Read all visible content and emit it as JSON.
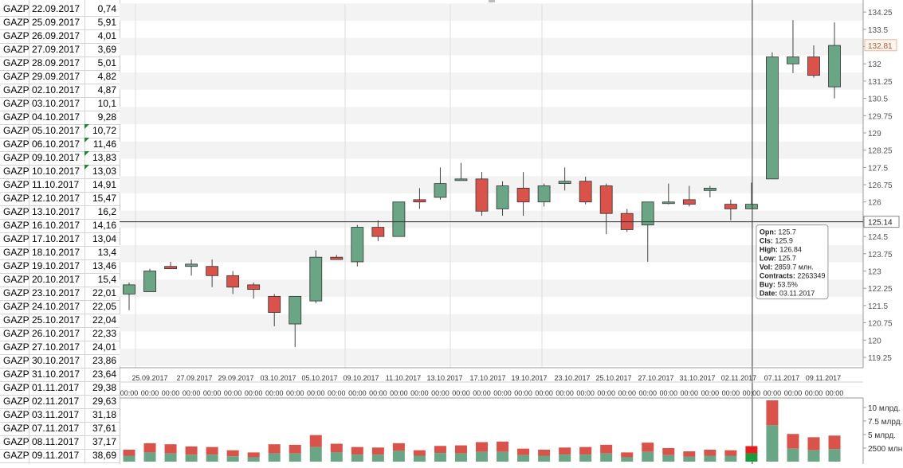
{
  "sheet": {
    "rows": [
      {
        "ticker": "GAZP",
        "date": "22.09.2017",
        "value": "0,74",
        "flag": false
      },
      {
        "ticker": "GAZP",
        "date": "25.09.2017",
        "value": "5,91",
        "flag": false
      },
      {
        "ticker": "GAZP",
        "date": "26.09.2017",
        "value": "4,01",
        "flag": false
      },
      {
        "ticker": "GAZP",
        "date": "27.09.2017",
        "value": "3,69",
        "flag": false
      },
      {
        "ticker": "GAZP",
        "date": "28.09.2017",
        "value": "5,01",
        "flag": false
      },
      {
        "ticker": "GAZP",
        "date": "29.09.2017",
        "value": "4,82",
        "flag": false
      },
      {
        "ticker": "GAZP",
        "date": "02.10.2017",
        "value": "4,87",
        "flag": false
      },
      {
        "ticker": "GAZP",
        "date": "03.10.2017",
        "value": "10,1",
        "flag": false
      },
      {
        "ticker": "GAZP",
        "date": "04.10.2017",
        "value": "9,28",
        "flag": false
      },
      {
        "ticker": "GAZP",
        "date": "05.10.2017",
        "value": "10,72",
        "flag": true
      },
      {
        "ticker": "GAZP",
        "date": "06.10.2017",
        "value": "11,46",
        "flag": true
      },
      {
        "ticker": "GAZP",
        "date": "09.10.2017",
        "value": "13,83",
        "flag": true
      },
      {
        "ticker": "GAZP",
        "date": "10.10.2017",
        "value": "13,03",
        "flag": true
      },
      {
        "ticker": "GAZP",
        "date": "11.10.2017",
        "value": "14,91",
        "flag": false
      },
      {
        "ticker": "GAZP",
        "date": "12.10.2017",
        "value": "15,47",
        "flag": false
      },
      {
        "ticker": "GAZP",
        "date": "13.10.2017",
        "value": "16,2",
        "flag": false
      },
      {
        "ticker": "GAZP",
        "date": "16.10.2017",
        "value": "14,16",
        "flag": false
      },
      {
        "ticker": "GAZP",
        "date": "17.10.2017",
        "value": "13,04",
        "flag": false
      },
      {
        "ticker": "GAZP",
        "date": "18.10.2017",
        "value": "13,4",
        "flag": false
      },
      {
        "ticker": "GAZP",
        "date": "19.10.2017",
        "value": "13,46",
        "flag": false
      },
      {
        "ticker": "GAZP",
        "date": "20.10.2017",
        "value": "15,4",
        "flag": false
      },
      {
        "ticker": "GAZP",
        "date": "23.10.2017",
        "value": "22,01",
        "flag": false
      },
      {
        "ticker": "GAZP",
        "date": "24.10.2017",
        "value": "22,05",
        "flag": false
      },
      {
        "ticker": "GAZP",
        "date": "25.10.2017",
        "value": "22,04",
        "flag": false
      },
      {
        "ticker": "GAZP",
        "date": "26.10.2017",
        "value": "22,33",
        "flag": false
      },
      {
        "ticker": "GAZP",
        "date": "27.10.2017",
        "value": "24,01",
        "flag": false
      },
      {
        "ticker": "GAZP",
        "date": "30.10.2017",
        "value": "23,86",
        "flag": false
      },
      {
        "ticker": "GAZP",
        "date": "31.10.2017",
        "value": "23,64",
        "flag": false
      },
      {
        "ticker": "GAZP",
        "date": "01.11.2017",
        "value": "29,38",
        "flag": false
      },
      {
        "ticker": "GAZP",
        "date": "02.11.2017",
        "value": "29,63",
        "flag": false
      },
      {
        "ticker": "GAZP",
        "date": "03.11.2017",
        "value": "31,18",
        "flag": false
      },
      {
        "ticker": "GAZP",
        "date": "07.11.2017",
        "value": "37,61",
        "flag": false
      },
      {
        "ticker": "GAZP",
        "date": "08.11.2017",
        "value": "37,17",
        "flag": false
      },
      {
        "ticker": "GAZP",
        "date": "09.11.2017",
        "value": "38,69",
        "flag": false
      }
    ]
  },
  "chart_data": {
    "type": "candlestick",
    "ylim": [
      118.8,
      134.6
    ],
    "y_ticks": [
      119.25,
      120,
      120.75,
      121.5,
      122.25,
      123,
      123.75,
      124.5,
      125.25,
      126,
      126.75,
      127.5,
      128.25,
      129,
      129.75,
      130.5,
      131.25,
      132,
      132.75,
      133.5,
      134.25
    ],
    "y_tick_labels": [
      "119.25",
      "120",
      "120.75",
      "121.5",
      "122.25",
      "123",
      "123.75",
      "124.5",
      "",
      "126",
      "126.75",
      "127.5",
      "128.25",
      "129",
      "129.75",
      "130.5",
      "131.25",
      "132",
      "",
      "133.5",
      "134.25"
    ],
    "candles": [
      {
        "o": 122.0,
        "h": 122.5,
        "l": 121.3,
        "c": 122.4
      },
      {
        "o": 122.1,
        "h": 123.1,
        "l": 122.1,
        "c": 123.0
      },
      {
        "o": 123.2,
        "h": 123.4,
        "l": 123.1,
        "c": 123.1
      },
      {
        "o": 123.2,
        "h": 123.5,
        "l": 122.8,
        "c": 123.3
      },
      {
        "o": 123.2,
        "h": 123.5,
        "l": 122.3,
        "c": 122.8
      },
      {
        "o": 122.8,
        "h": 123.0,
        "l": 122.0,
        "c": 122.3
      },
      {
        "o": 122.4,
        "h": 122.5,
        "l": 121.8,
        "c": 122.2
      },
      {
        "o": 121.9,
        "h": 122.0,
        "l": 120.6,
        "c": 121.2
      },
      {
        "o": 120.7,
        "h": 121.8,
        "l": 119.7,
        "c": 121.9
      },
      {
        "o": 121.7,
        "h": 123.9,
        "l": 121.6,
        "c": 123.6
      },
      {
        "o": 123.6,
        "h": 123.7,
        "l": 123.5,
        "c": 123.5
      },
      {
        "o": 123.4,
        "h": 125.0,
        "l": 123.2,
        "c": 124.9
      },
      {
        "o": 124.9,
        "h": 125.2,
        "l": 124.3,
        "c": 124.5
      },
      {
        "o": 124.5,
        "h": 126.0,
        "l": 124.5,
        "c": 126.0
      },
      {
        "o": 126.1,
        "h": 126.6,
        "l": 125.7,
        "c": 126.0
      },
      {
        "o": 126.2,
        "h": 127.5,
        "l": 126.1,
        "c": 126.8
      },
      {
        "o": 127.0,
        "h": 127.7,
        "l": 127.0,
        "c": 127.0
      },
      {
        "o": 127.0,
        "h": 127.3,
        "l": 125.4,
        "c": 125.6
      },
      {
        "o": 125.7,
        "h": 126.9,
        "l": 125.4,
        "c": 126.7
      },
      {
        "o": 126.6,
        "h": 127.3,
        "l": 125.4,
        "c": 126.0
      },
      {
        "o": 126.0,
        "h": 126.8,
        "l": 125.8,
        "c": 126.7
      },
      {
        "o": 126.8,
        "h": 127.5,
        "l": 126.5,
        "c": 126.9
      },
      {
        "o": 126.9,
        "h": 127.1,
        "l": 125.9,
        "c": 126.0
      },
      {
        "o": 126.7,
        "h": 126.8,
        "l": 124.6,
        "c": 125.5
      },
      {
        "o": 125.5,
        "h": 125.7,
        "l": 124.7,
        "c": 124.8
      },
      {
        "o": 125.0,
        "h": 126.0,
        "l": 123.4,
        "c": 126.0
      },
      {
        "o": 126.0,
        "h": 126.8,
        "l": 125.9,
        "c": 126.0
      },
      {
        "o": 126.1,
        "h": 126.7,
        "l": 125.8,
        "c": 125.9
      },
      {
        "o": 126.5,
        "h": 126.7,
        "l": 126.2,
        "c": 126.6
      },
      {
        "o": 125.9,
        "h": 126.1,
        "l": 125.2,
        "c": 125.7
      },
      {
        "o": 125.7,
        "h": 126.84,
        "l": 125.7,
        "c": 125.9
      },
      {
        "o": 127.0,
        "h": 132.5,
        "l": 127.0,
        "c": 132.3
      },
      {
        "o": 132.0,
        "h": 133.9,
        "l": 131.6,
        "c": 132.3
      },
      {
        "o": 132.3,
        "h": 132.8,
        "l": 131.4,
        "c": 131.5
      },
      {
        "o": 131.0,
        "h": 133.8,
        "l": 130.5,
        "c": 132.8
      }
    ],
    "x_date_labels": [
      "25.09.2017",
      "27.09.2017",
      "29.09.2017",
      "03.10.2017",
      "05.10.2017",
      "09.10.2017",
      "11.10.2017",
      "13.10.2017",
      "17.10.2017",
      "19.10.2017",
      "23.10.2017",
      "25.10.2017",
      "27.10.2017",
      "31.10.2017",
      "02.11.2017",
      "07.11.2017",
      "09.11.2017"
    ],
    "x_time_label": "00:00",
    "volume": {
      "ticks": [
        "10 млрд.",
        "7.5 млрд.",
        "5 млрд.",
        "2500 млн."
      ],
      "tick_values": [
        10000,
        7500,
        5000,
        2500
      ],
      "ymax": 11300,
      "bars": [
        {
          "total": 2200,
          "buy": 1100
        },
        {
          "total": 3400,
          "buy": 1700
        },
        {
          "total": 3200,
          "buy": 1500
        },
        {
          "total": 2800,
          "buy": 1300
        },
        {
          "total": 2700,
          "buy": 1300
        },
        {
          "total": 2100,
          "buy": 1000
        },
        {
          "total": 1700,
          "buy": 800
        },
        {
          "total": 3200,
          "buy": 1500
        },
        {
          "total": 3100,
          "buy": 1500
        },
        {
          "total": 4900,
          "buy": 2700
        },
        {
          "total": 3300,
          "buy": 1700
        },
        {
          "total": 2700,
          "buy": 1300
        },
        {
          "total": 2600,
          "buy": 1300
        },
        {
          "total": 3400,
          "buy": 2000
        },
        {
          "total": 2100,
          "buy": 1100
        },
        {
          "total": 2900,
          "buy": 1600
        },
        {
          "total": 3000,
          "buy": 1500
        },
        {
          "total": 3600,
          "buy": 1800
        },
        {
          "total": 3700,
          "buy": 1800
        },
        {
          "total": 2400,
          "buy": 1200
        },
        {
          "total": 2200,
          "buy": 1100
        },
        {
          "total": 2600,
          "buy": 1300
        },
        {
          "total": 2700,
          "buy": 1300
        },
        {
          "total": 3100,
          "buy": 1500
        },
        {
          "total": 1700,
          "buy": 800
        },
        {
          "total": 3500,
          "buy": 1800
        },
        {
          "total": 2500,
          "buy": 1200
        },
        {
          "total": 1900,
          "buy": 900
        },
        {
          "total": 2200,
          "buy": 1100
        },
        {
          "total": 2100,
          "buy": 1100
        },
        {
          "total": 2860,
          "buy": 1530
        },
        {
          "total": 11300,
          "buy": 6700
        },
        {
          "total": 5100,
          "buy": 2400
        },
        {
          "total": 4500,
          "buy": 2100
        },
        {
          "total": 4800,
          "buy": 2300
        }
      ]
    },
    "crosshair": {
      "price": 125.14,
      "price_label": "125.14",
      "candle_index": 30
    },
    "last_price": {
      "value": 132.81,
      "label": "132.81"
    },
    "tooltip": {
      "lines": [
        {
          "k": "Opn:",
          "v": "125.7"
        },
        {
          "k": "Cls:",
          "v": "125.9"
        },
        {
          "k": "High:",
          "v": "126.84"
        },
        {
          "k": "Low:",
          "v": "125.7"
        },
        {
          "k": "Vol:",
          "v": "2859.7 млн."
        },
        {
          "k": "Contracts:",
          "v": "2263349"
        },
        {
          "k": "Buy:",
          "v": "53.5%"
        },
        {
          "k": "Date:",
          "v": "03.11.2017"
        }
      ]
    },
    "colors": {
      "up": "#6aa585",
      "down": "#d9534a",
      "vol_buy": "#6aa585",
      "vol_sell": "#d9534a",
      "vol_sel_buy": "#1d9a3e",
      "vol_sel_sell": "#e3201f"
    }
  }
}
